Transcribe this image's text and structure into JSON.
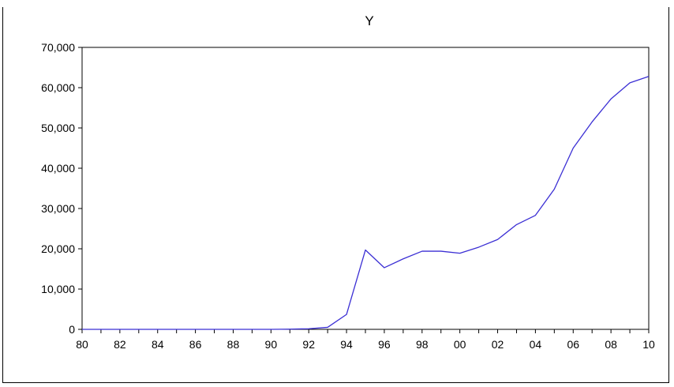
{
  "chart_data": {
    "type": "line",
    "title": "Y",
    "xlabel": "",
    "ylabel": "",
    "x": [
      1980,
      1981,
      1982,
      1983,
      1984,
      1985,
      1986,
      1987,
      1988,
      1989,
      1990,
      1991,
      1992,
      1993,
      1994,
      1995,
      1996,
      1997,
      1998,
      1999,
      2000,
      2001,
      2002,
      2003,
      2004,
      2005,
      2006,
      2007,
      2008,
      2009,
      2010
    ],
    "series": [
      {
        "values": [
          0,
          0,
          0,
          0,
          0,
          0,
          0,
          0,
          0,
          0,
          0,
          50,
          150,
          500,
          3700,
          19700,
          15300,
          17500,
          19400,
          19400,
          18900,
          20400,
          22300,
          26000,
          28300,
          34800,
          45000,
          51500,
          57200,
          61200,
          62800
        ],
        "color": "#3b2fd4"
      }
    ],
    "xlim": [
      1980,
      2010
    ],
    "ylim": [
      0,
      70000
    ],
    "x_tick_labels": [
      "80",
      "82",
      "84",
      "86",
      "88",
      "90",
      "92",
      "94",
      "96",
      "98",
      "00",
      "02",
      "04",
      "06",
      "08",
      "10"
    ],
    "y_tick_labels": [
      "0",
      "10,000",
      "20,000",
      "30,000",
      "40,000",
      "50,000",
      "60,000",
      "70,000"
    ],
    "grid": false,
    "legend": "none"
  }
}
